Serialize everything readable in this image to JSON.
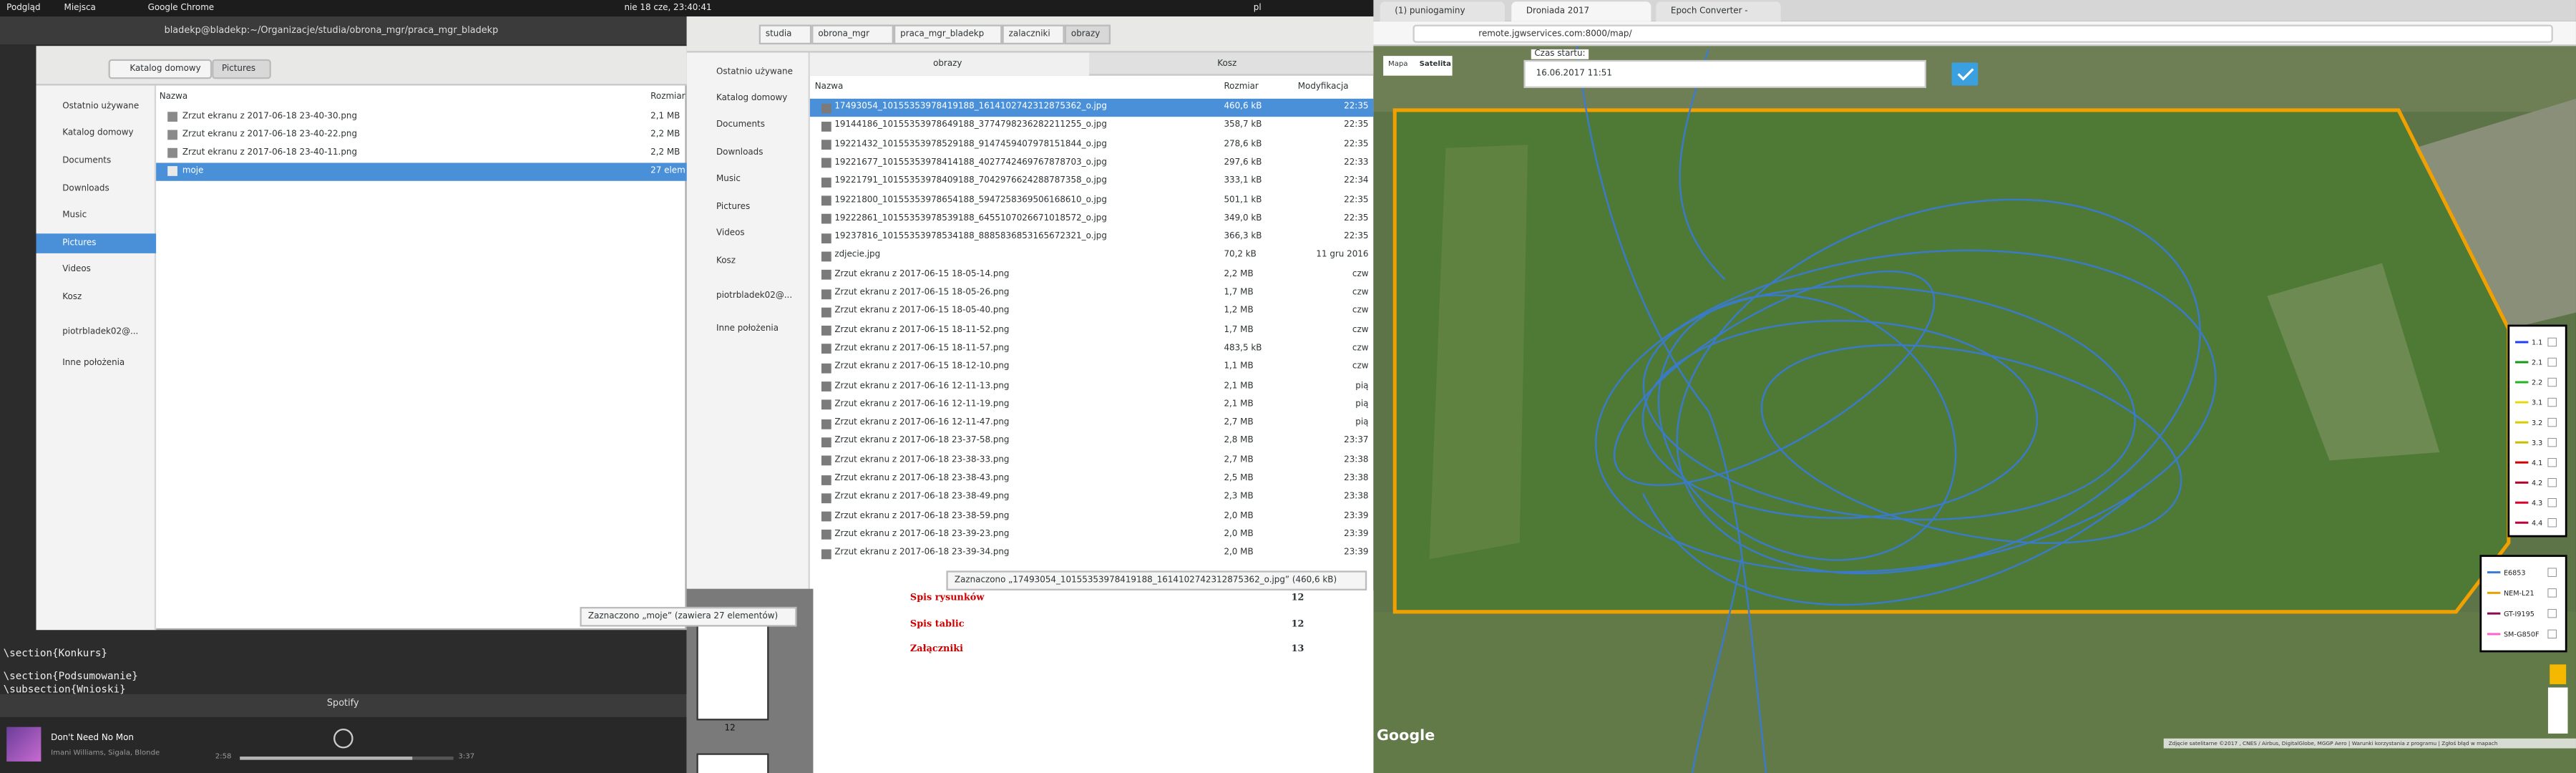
{
  "top_bar": {
    "activities": "Podgląd",
    "places": "Miejsca",
    "app": "Google Chrome",
    "clock": "nie 18 cze, 23:40:41",
    "lang": "pl"
  },
  "terminal": {
    "title": "bladekp@bladekp:~/Organizacje/studia/obrona_mgr/praca_mgr_bladekp",
    "lines": [
      "\\section{Konkurs}",
      "\\section{Podsumowanie}",
      "\\subsection{Wnioski}"
    ]
  },
  "files_left": {
    "path": [
      "Katalog domowy",
      "Pictures"
    ],
    "sidebar": [
      "Ostatnio używane",
      "Katalog domowy",
      "Documents",
      "Downloads",
      "Music",
      "Pictures",
      "Videos",
      "Kosz",
      "piotrbladek02@...",
      "Inne położenia"
    ],
    "columns": [
      "Nazwa",
      "Rozmiar"
    ],
    "rows": [
      [
        "Zrzut ekranu z 2017-06-18 23-40-30.png",
        "2,1 MB"
      ],
      [
        "Zrzut ekranu z 2017-06-18 23-40-22.png",
        "2,2 MB"
      ],
      [
        "Zrzut ekranu z 2017-06-18 23-40-11.png",
        "2,2 MB"
      ],
      [
        "moje",
        "27 elem"
      ]
    ],
    "status": "Zaznaczono „moje” (zawiera 27 elementów)"
  },
  "spotify": {
    "title": "Spotify",
    "track": "Don't Need No Mon",
    "artist": "Imani Williams, Sigala, Blonde",
    "elapsed": "2:58",
    "total": "3:37"
  },
  "files_right": {
    "path": [
      "studia",
      "obrona_mgr",
      "praca_mgr_bladekp",
      "zalaczniki",
      "obrazy"
    ],
    "tabs": [
      "obrazy",
      "Kosz"
    ],
    "sidebar": [
      "Ostatnio używane",
      "Katalog domowy",
      "Documents",
      "Downloads",
      "Music",
      "Pictures",
      "Videos",
      "Kosz",
      "piotrbladek02@...",
      "Inne położenia"
    ],
    "columns": [
      "Nazwa",
      "Rozmiar",
      "Modyfikacja"
    ],
    "rows": [
      [
        "17493054_10155353978419188_1614102742312875362_o.jpg",
        "460,6 kB",
        "22:35"
      ],
      [
        "19144186_10155353978649188_3774798236282211255_o.jpg",
        "358,7 kB",
        "22:35"
      ],
      [
        "19221432_10155353978529188_9147459407978151844_o.jpg",
        "278,6 kB",
        "22:35"
      ],
      [
        "19221677_10155353978414188_4027742469767878703_o.jpg",
        "297,6 kB",
        "22:33"
      ],
      [
        "19221791_10155353978409188_7042976624288787358_o.jpg",
        "333,1 kB",
        "22:34"
      ],
      [
        "19221800_10155353978654188_5947258369506168610_o.jpg",
        "501,1 kB",
        "22:35"
      ],
      [
        "19222861_10155353978539188_6455107026671018572_o.jpg",
        "349,0 kB",
        "22:35"
      ],
      [
        "19237816_10155353978534188_8885836853165672321_o.jpg",
        "366,3 kB",
        "22:35"
      ],
      [
        "zdjecie.jpg",
        "70,2 kB",
        "11 gru 2016"
      ],
      [
        "Zrzut ekranu z 2017-06-15 18-05-14.png",
        "2,2 MB",
        "czw"
      ],
      [
        "Zrzut ekranu z 2017-06-15 18-05-26.png",
        "1,7 MB",
        "czw"
      ],
      [
        "Zrzut ekranu z 2017-06-15 18-05-40.png",
        "1,2 MB",
        "czw"
      ],
      [
        "Zrzut ekranu z 2017-06-15 18-11-52.png",
        "1,7 MB",
        "czw"
      ],
      [
        "Zrzut ekranu z 2017-06-15 18-11-57.png",
        "483,5 kB",
        "czw"
      ],
      [
        "Zrzut ekranu z 2017-06-15 18-12-10.png",
        "1,1 MB",
        "czw"
      ],
      [
        "Zrzut ekranu z 2017-06-16 12-11-13.png",
        "2,1 MB",
        "pią"
      ],
      [
        "Zrzut ekranu z 2017-06-16 12-11-19.png",
        "2,1 MB",
        "pią"
      ],
      [
        "Zrzut ekranu z 2017-06-16 12-11-47.png",
        "2,7 MB",
        "pią"
      ],
      [
        "Zrzut ekranu z 2017-06-18 23-37-58.png",
        "2,8 MB",
        "23:37"
      ],
      [
        "Zrzut ekranu z 2017-06-18 23-38-33.png",
        "2,7 MB",
        "23:38"
      ],
      [
        "Zrzut ekranu z 2017-06-18 23-38-43.png",
        "2,5 MB",
        "23:38"
      ],
      [
        "Zrzut ekranu z 2017-06-18 23-38-49.png",
        "2,3 MB",
        "23:38"
      ],
      [
        "Zrzut ekranu z 2017-06-18 23-38-59.png",
        "2,0 MB",
        "23:39"
      ],
      [
        "Zrzut ekranu z 2017-06-18 23-39-23.png",
        "2,0 MB",
        "23:39"
      ],
      [
        "Zrzut ekranu z 2017-06-18 23-39-34.png",
        "2,0 MB",
        "23:39"
      ]
    ],
    "status": "Zaznaczono „17493054_10155353978419188_1614102742312875362_o.jpg” (460,6 kB)"
  },
  "document": {
    "entries": [
      [
        "Spis rysunków",
        "12"
      ],
      [
        "Spis tablic",
        "12"
      ],
      [
        "Załączniki",
        "13"
      ]
    ],
    "page_number": "12"
  },
  "browser": {
    "tabs": [
      "(1) puniogaminy",
      "Droniada 2017",
      "Epoch Converter -"
    ],
    "url": "remote.jgwservices.com:8000/map/",
    "map_types": [
      "Mapa",
      "Satelita"
    ],
    "start_label": "Czas startu:",
    "start_value": "16.06.2017 11:51",
    "legend_top": [
      {
        "name": "1.1",
        "color": "#1f3cff"
      },
      {
        "name": "2.1",
        "color": "#139a13"
      },
      {
        "name": "2.2",
        "color": "#22b522"
      },
      {
        "name": "3.1",
        "color": "#e6d800"
      },
      {
        "name": "3.2",
        "color": "#d8cc00"
      },
      {
        "name": "3.3",
        "color": "#c9bd00"
      },
      {
        "name": "4.1",
        "color": "#d10000"
      },
      {
        "name": "4.2",
        "color": "#b5002a"
      },
      {
        "name": "4.3",
        "color": "#e0002c"
      },
      {
        "name": "4.4",
        "color": "#c1003c"
      }
    ],
    "legend_bottom": [
      {
        "name": "E6853",
        "color": "#3a7bd5"
      },
      {
        "name": "NEM-L21",
        "color": "#e8a200"
      },
      {
        "name": "GT-I9195",
        "color": "#8b0a50"
      },
      {
        "name": "SM-G850F",
        "color": "#ff66cc"
      }
    ],
    "attribution": "Zdjęcie satelitarne ©2017 , CNES / Airbus, DigitalGlobe, MGGP Aero | Warunki korzystania z programu | Zgłoś błąd w mapach",
    "google": "Google"
  }
}
